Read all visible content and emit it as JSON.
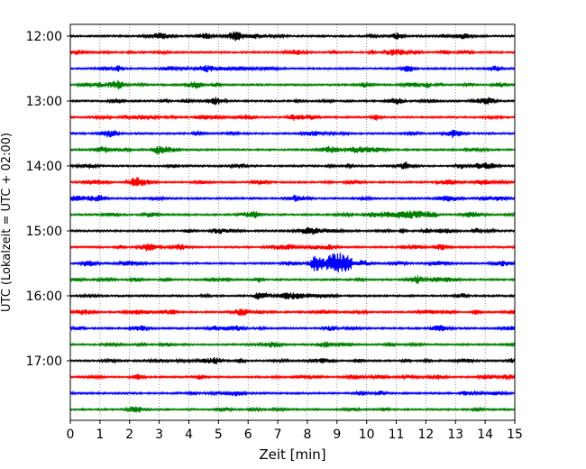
{
  "chart_data": {
    "type": "line",
    "title": "",
    "xlabel": "Zeit  [min]",
    "ylabel": "UTC (Lokalzeit = UTC + 02:00)",
    "xlim": [
      0,
      15
    ],
    "x_ticks": [
      0,
      1,
      2,
      3,
      4,
      5,
      6,
      7,
      8,
      9,
      10,
      11,
      12,
      13,
      14,
      15
    ],
    "x_tick_labels": [
      "0",
      "1",
      "2",
      "3",
      "4",
      "5",
      "6",
      "7",
      "8",
      "9",
      "10",
      "11",
      "12",
      "13",
      "14",
      "15"
    ],
    "vertical_grid": true,
    "grid_style": "dotted",
    "row_interval_minutes": 15,
    "start_time": "12:00",
    "y_tick_labels": [
      "12:00",
      "13:00",
      "14:00",
      "15:00",
      "16:00",
      "17:00"
    ],
    "color_cycle": [
      "#000000",
      "#ff0000",
      "#0000ff",
      "#008000"
    ],
    "traces": [
      {
        "time": "12:00",
        "color": "#000000",
        "bursts": []
      },
      {
        "time": "12:15",
        "color": "#ff0000",
        "bursts": []
      },
      {
        "time": "12:30",
        "color": "#0000ff",
        "bursts": []
      },
      {
        "time": "12:45",
        "color": "#008000",
        "bursts": []
      },
      {
        "time": "13:00",
        "color": "#000000",
        "bursts": []
      },
      {
        "time": "13:15",
        "color": "#ff0000",
        "bursts": []
      },
      {
        "time": "13:30",
        "color": "#0000ff",
        "bursts": []
      },
      {
        "time": "13:45",
        "color": "#008000",
        "bursts": []
      },
      {
        "time": "14:00",
        "color": "#000000",
        "bursts": []
      },
      {
        "time": "14:15",
        "color": "#ff0000",
        "bursts": []
      },
      {
        "time": "14:30",
        "color": "#0000ff",
        "bursts": []
      },
      {
        "time": "14:45",
        "color": "#008000",
        "bursts": [
          {
            "start": 10.5,
            "end": 12.4,
            "amplitude": 0.35
          }
        ]
      },
      {
        "time": "15:00",
        "color": "#000000",
        "bursts": []
      },
      {
        "time": "15:15",
        "color": "#ff0000",
        "bursts": []
      },
      {
        "time": "15:30",
        "color": "#0000ff",
        "bursts": [
          {
            "start": 8.1,
            "end": 8.6,
            "amplitude": 0.65
          },
          {
            "start": 8.6,
            "end": 9.5,
            "amplitude": 1.0
          },
          {
            "start": 9.5,
            "end": 10.0,
            "amplitude": 0.25
          }
        ]
      },
      {
        "time": "15:45",
        "color": "#008000",
        "bursts": []
      },
      {
        "time": "16:00",
        "color": "#000000",
        "bursts": []
      },
      {
        "time": "16:15",
        "color": "#ff0000",
        "bursts": []
      },
      {
        "time": "16:30",
        "color": "#0000ff",
        "bursts": []
      },
      {
        "time": "16:45",
        "color": "#008000",
        "bursts": []
      },
      {
        "time": "17:00",
        "color": "#000000",
        "bursts": []
      },
      {
        "time": "17:15",
        "color": "#ff0000",
        "bursts": []
      },
      {
        "time": "17:30",
        "color": "#0000ff",
        "bursts": []
      },
      {
        "time": "17:45",
        "color": "#008000",
        "bursts": []
      }
    ]
  }
}
